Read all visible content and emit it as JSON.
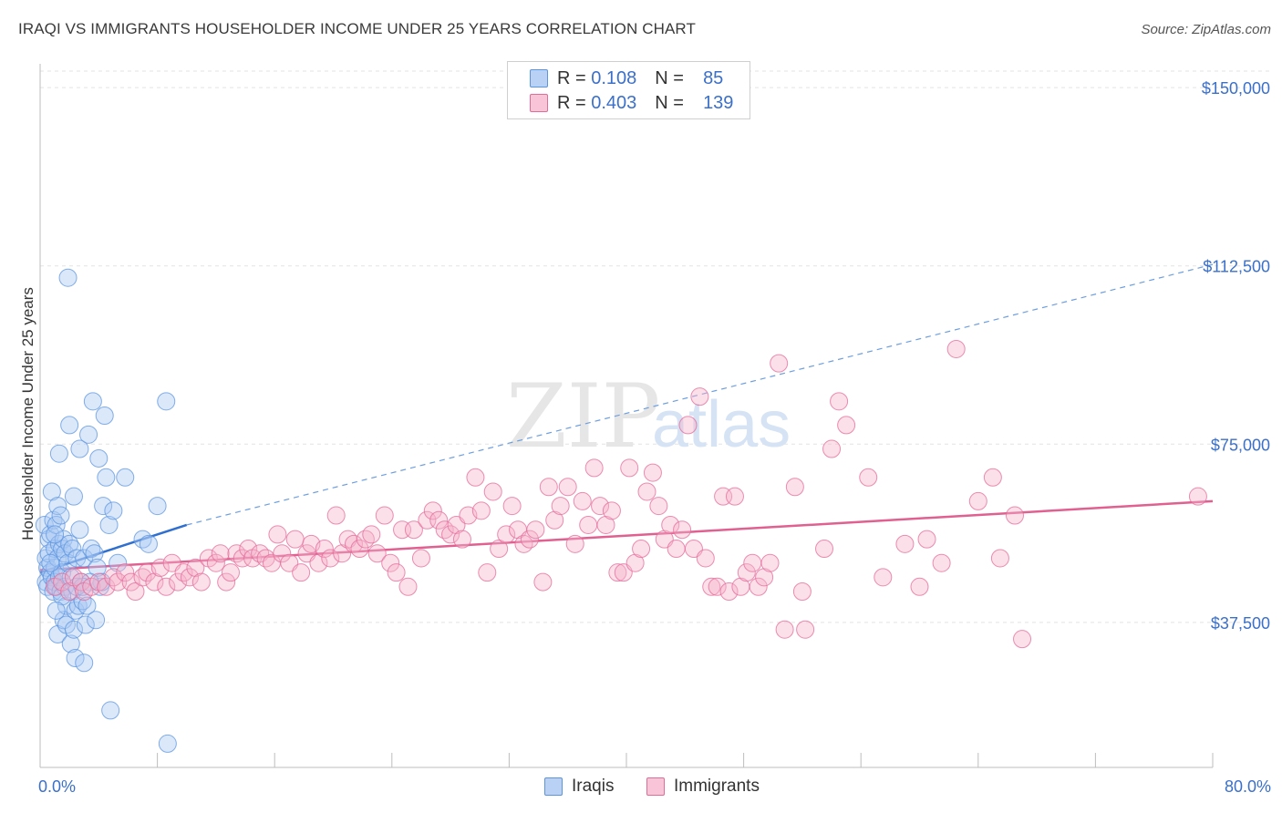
{
  "chart_data": {
    "type": "scatter",
    "title": "IRAQI VS IMMIGRANTS HOUSEHOLDER INCOME UNDER 25 YEARS CORRELATION CHART",
    "source": "Source: ZipAtlas.com",
    "ylabel": "Householder Income Under 25 years",
    "xlim": [
      0,
      80
    ],
    "ylim": [
      7000,
      155000
    ],
    "x_tick_labels": [
      "0.0%",
      "80.0%"
    ],
    "y_ticks": [
      {
        "value": 37500,
        "label": "$37,500"
      },
      {
        "value": 75000,
        "label": "$75,000"
      },
      {
        "value": 112500,
        "label": "$112,500"
      },
      {
        "value": 150000,
        "label": "$150,000"
      }
    ],
    "grid": true,
    "watermark": "ZIPatlas",
    "legend": [
      {
        "r_label": "R =",
        "r": "0.108",
        "n_label": "N =",
        "n": "85"
      },
      {
        "r_label": "R =",
        "r": "0.403",
        "n_label": "N =",
        "n": "139"
      }
    ],
    "series": [
      {
        "name": "Iraqis",
        "color": "#5b94e0",
        "fill": "#a9c8f2",
        "trend": {
          "x0": 0,
          "y0": 48000,
          "x1": 10,
          "y1": 58000,
          "x_end": 80,
          "y_end": 112800
        },
        "points": [
          [
            0.3,
            58
          ],
          [
            0.4,
            51
          ],
          [
            0.4,
            46
          ],
          [
            0.5,
            49
          ],
          [
            0.5,
            45
          ],
          [
            0.6,
            55
          ],
          [
            0.6,
            52
          ],
          [
            0.7,
            56
          ],
          [
            0.7,
            48
          ],
          [
            0.8,
            65
          ],
          [
            0.8,
            47
          ],
          [
            0.9,
            59
          ],
          [
            0.9,
            44
          ],
          [
            1.0,
            53
          ],
          [
            1.0,
            49
          ],
          [
            1.0,
            46
          ],
          [
            1.1,
            58
          ],
          [
            1.1,
            45
          ],
          [
            1.2,
            62
          ],
          [
            1.2,
            51
          ],
          [
            1.2,
            35
          ],
          [
            1.3,
            73
          ],
          [
            1.3,
            54
          ],
          [
            1.3,
            47
          ],
          [
            1.4,
            60
          ],
          [
            1.4,
            44
          ],
          [
            1.5,
            53
          ],
          [
            1.5,
            48
          ],
          [
            1.6,
            55
          ],
          [
            1.6,
            38
          ],
          [
            1.7,
            52
          ],
          [
            1.7,
            45
          ],
          [
            1.8,
            41
          ],
          [
            1.8,
            37
          ],
          [
            1.9,
            110
          ],
          [
            1.9,
            50
          ],
          [
            2.0,
            79
          ],
          [
            2.0,
            54
          ],
          [
            2.1,
            47
          ],
          [
            2.1,
            33
          ],
          [
            2.2,
            53
          ],
          [
            2.2,
            44
          ],
          [
            2.3,
            64
          ],
          [
            2.3,
            36
          ],
          [
            2.4,
            40
          ],
          [
            2.4,
            30
          ],
          [
            2.5,
            51
          ],
          [
            2.6,
            41
          ],
          [
            2.7,
            74
          ],
          [
            2.7,
            57
          ],
          [
            2.8,
            46
          ],
          [
            2.9,
            42
          ],
          [
            3.0,
            51
          ],
          [
            3.0,
            29
          ],
          [
            3.1,
            37
          ],
          [
            3.2,
            41
          ],
          [
            3.3,
            77
          ],
          [
            3.5,
            53
          ],
          [
            3.6,
            84
          ],
          [
            3.7,
            52
          ],
          [
            3.8,
            38
          ],
          [
            3.9,
            49
          ],
          [
            4.0,
            72
          ],
          [
            4.1,
            45
          ],
          [
            4.2,
            46
          ],
          [
            4.3,
            62
          ],
          [
            4.4,
            81
          ],
          [
            4.5,
            68
          ],
          [
            4.7,
            58
          ],
          [
            4.8,
            19
          ],
          [
            5.0,
            61
          ],
          [
            5.3,
            50
          ],
          [
            5.8,
            68
          ],
          [
            7.0,
            55
          ],
          [
            7.4,
            54
          ],
          [
            8.0,
            62
          ],
          [
            8.6,
            84
          ],
          [
            8.7,
            12
          ],
          [
            1.0,
            56
          ],
          [
            1.5,
            43
          ],
          [
            2.5,
            45
          ],
          [
            0.7,
            50
          ],
          [
            1.1,
            40
          ],
          [
            3.4,
            46
          ],
          [
            2.9,
            45
          ]
        ]
      },
      {
        "name": "Immigrants",
        "color": "#e46a98",
        "fill": "#f6b3cb",
        "trend": {
          "x0": 0,
          "y0": 48500,
          "x1": 80,
          "y1": 63000
        },
        "points": [
          [
            1.0,
            45
          ],
          [
            1.5,
            46
          ],
          [
            2.0,
            44
          ],
          [
            2.3,
            47
          ],
          [
            2.8,
            46
          ],
          [
            3.0,
            44
          ],
          [
            3.5,
            45
          ],
          [
            4.0,
            46
          ],
          [
            4.5,
            45
          ],
          [
            5.0,
            47
          ],
          [
            5.3,
            46
          ],
          [
            5.8,
            48
          ],
          [
            6.2,
            46
          ],
          [
            6.5,
            44
          ],
          [
            7.0,
            47
          ],
          [
            7.3,
            48
          ],
          [
            7.8,
            46
          ],
          [
            8.2,
            49
          ],
          [
            8.6,
            45
          ],
          [
            9.0,
            50
          ],
          [
            9.4,
            46
          ],
          [
            9.8,
            48
          ],
          [
            10.2,
            47
          ],
          [
            10.6,
            49
          ],
          [
            11.0,
            46
          ],
          [
            11.5,
            51
          ],
          [
            12.0,
            50
          ],
          [
            12.3,
            52
          ],
          [
            12.7,
            46
          ],
          [
            13.0,
            48
          ],
          [
            13.4,
            52
          ],
          [
            13.8,
            51
          ],
          [
            14.2,
            53
          ],
          [
            14.5,
            51
          ],
          [
            15.0,
            52
          ],
          [
            15.4,
            51
          ],
          [
            15.8,
            50
          ],
          [
            16.2,
            56
          ],
          [
            16.5,
            52
          ],
          [
            17.0,
            50
          ],
          [
            17.4,
            55
          ],
          [
            17.8,
            48
          ],
          [
            18.2,
            52
          ],
          [
            18.5,
            54
          ],
          [
            19.0,
            50
          ],
          [
            19.4,
            53
          ],
          [
            19.8,
            51
          ],
          [
            20.2,
            60
          ],
          [
            20.6,
            52
          ],
          [
            21.0,
            55
          ],
          [
            21.4,
            54
          ],
          [
            21.8,
            53
          ],
          [
            22.2,
            55
          ],
          [
            22.6,
            56
          ],
          [
            23.0,
            52
          ],
          [
            23.5,
            60
          ],
          [
            23.9,
            50
          ],
          [
            24.3,
            48
          ],
          [
            24.7,
            57
          ],
          [
            25.1,
            45
          ],
          [
            25.5,
            57
          ],
          [
            26.0,
            51
          ],
          [
            26.4,
            59
          ],
          [
            26.8,
            61
          ],
          [
            27.2,
            59
          ],
          [
            27.6,
            57
          ],
          [
            28.0,
            56
          ],
          [
            28.4,
            58
          ],
          [
            28.8,
            55
          ],
          [
            29.2,
            60
          ],
          [
            29.7,
            68
          ],
          [
            30.1,
            61
          ],
          [
            30.5,
            48
          ],
          [
            30.9,
            65
          ],
          [
            31.3,
            53
          ],
          [
            31.8,
            56
          ],
          [
            32.2,
            62
          ],
          [
            32.6,
            57
          ],
          [
            33.0,
            54
          ],
          [
            33.4,
            55
          ],
          [
            33.8,
            57
          ],
          [
            34.3,
            46
          ],
          [
            34.7,
            66
          ],
          [
            35.1,
            59
          ],
          [
            35.5,
            62
          ],
          [
            36.0,
            66
          ],
          [
            36.5,
            54
          ],
          [
            37.0,
            63
          ],
          [
            37.4,
            58
          ],
          [
            37.8,
            70
          ],
          [
            38.2,
            62
          ],
          [
            38.6,
            58
          ],
          [
            39.0,
            61
          ],
          [
            39.4,
            48
          ],
          [
            39.8,
            48
          ],
          [
            40.2,
            70
          ],
          [
            40.6,
            50
          ],
          [
            41.0,
            53
          ],
          [
            41.4,
            65
          ],
          [
            41.8,
            69
          ],
          [
            42.2,
            62
          ],
          [
            42.6,
            55
          ],
          [
            43.0,
            58
          ],
          [
            43.4,
            53
          ],
          [
            43.8,
            57
          ],
          [
            44.2,
            79
          ],
          [
            44.6,
            53
          ],
          [
            45.0,
            85
          ],
          [
            45.4,
            51
          ],
          [
            45.8,
            45
          ],
          [
            46.2,
            45
          ],
          [
            46.6,
            64
          ],
          [
            47.0,
            44
          ],
          [
            47.4,
            64
          ],
          [
            47.8,
            45
          ],
          [
            48.2,
            48
          ],
          [
            48.6,
            50
          ],
          [
            49.0,
            45
          ],
          [
            49.4,
            47
          ],
          [
            49.8,
            50
          ],
          [
            50.4,
            92
          ],
          [
            50.8,
            36
          ],
          [
            51.5,
            66
          ],
          [
            52.0,
            44
          ],
          [
            52.2,
            36
          ],
          [
            53.5,
            53
          ],
          [
            54.0,
            74
          ],
          [
            54.5,
            84
          ],
          [
            55.0,
            79
          ],
          [
            56.5,
            68
          ],
          [
            57.5,
            47
          ],
          [
            59.0,
            54
          ],
          [
            60.0,
            45
          ],
          [
            60.5,
            55
          ],
          [
            61.5,
            50
          ],
          [
            62.5,
            95
          ],
          [
            64.0,
            63
          ],
          [
            65.0,
            68
          ],
          [
            65.5,
            51
          ],
          [
            66.5,
            60
          ],
          [
            67.0,
            34
          ],
          [
            79.0,
            64
          ]
        ]
      }
    ],
    "x_axis_labels": [
      "0.0%",
      "80.0%"
    ]
  },
  "legend_bottom": [
    "Iraqis",
    "Immigrants"
  ]
}
